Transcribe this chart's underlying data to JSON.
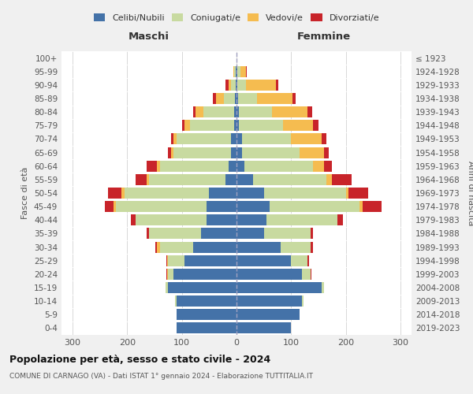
{
  "age_groups": [
    "0-4",
    "5-9",
    "10-14",
    "15-19",
    "20-24",
    "25-29",
    "30-34",
    "35-39",
    "40-44",
    "45-49",
    "50-54",
    "55-59",
    "60-64",
    "65-69",
    "70-74",
    "75-79",
    "80-84",
    "85-89",
    "90-94",
    "95-99",
    "100+"
  ],
  "birth_years": [
    "2019-2023",
    "2014-2018",
    "2009-2013",
    "2004-2008",
    "1999-2003",
    "1994-1998",
    "1989-1993",
    "1984-1988",
    "1979-1983",
    "1974-1978",
    "1969-1973",
    "1964-1968",
    "1959-1963",
    "1954-1958",
    "1949-1953",
    "1944-1948",
    "1939-1943",
    "1934-1938",
    "1929-1933",
    "1924-1928",
    "≤ 1923"
  ],
  "male": {
    "celibi": [
      110,
      110,
      110,
      125,
      115,
      95,
      80,
      65,
      55,
      55,
      50,
      20,
      15,
      10,
      10,
      5,
      5,
      3,
      2,
      2,
      0
    ],
    "coniugati": [
      0,
      0,
      2,
      5,
      10,
      30,
      60,
      95,
      130,
      165,
      155,
      140,
      125,
      105,
      100,
      80,
      55,
      20,
      8,
      2,
      0
    ],
    "vedovi": [
      0,
      0,
      0,
      0,
      2,
      2,
      5,
      0,
      0,
      5,
      5,
      5,
      5,
      5,
      5,
      10,
      15,
      15,
      5,
      2,
      0
    ],
    "divorziati": [
      0,
      0,
      0,
      0,
      2,
      2,
      3,
      5,
      8,
      15,
      25,
      20,
      20,
      5,
      5,
      5,
      5,
      5,
      5,
      0,
      0
    ]
  },
  "female": {
    "nubili": [
      100,
      115,
      120,
      155,
      120,
      100,
      80,
      50,
      55,
      60,
      50,
      30,
      15,
      10,
      10,
      5,
      5,
      3,
      2,
      2,
      0
    ],
    "coniugate": [
      0,
      0,
      2,
      5,
      15,
      30,
      55,
      85,
      130,
      165,
      150,
      135,
      125,
      105,
      90,
      80,
      60,
      35,
      15,
      5,
      0
    ],
    "vedove": [
      0,
      0,
      0,
      0,
      0,
      0,
      0,
      0,
      0,
      5,
      5,
      10,
      20,
      45,
      55,
      55,
      65,
      65,
      55,
      10,
      0
    ],
    "divorziate": [
      0,
      0,
      0,
      0,
      2,
      2,
      5,
      5,
      10,
      35,
      35,
      35,
      15,
      8,
      10,
      10,
      8,
      5,
      5,
      2,
      0
    ]
  },
  "colors": {
    "celibi_nubili": "#4472a8",
    "coniugati": "#c8daa0",
    "vedovi": "#f5bc50",
    "divorziati": "#c8242a"
  },
  "title": "Popolazione per età, sesso e stato civile - 2024",
  "subtitle": "COMUNE DI CARNAGO (VA) - Dati ISTAT 1° gennaio 2024 - Elaborazione TUTTITALIA.IT",
  "xlabel_left": "Maschi",
  "xlabel_right": "Femmine",
  "ylabel_left": "Fasce di età",
  "ylabel_right": "Anni di nascita",
  "xlim": 320,
  "bg_color": "#f0f0f0",
  "plot_bg": "#ffffff",
  "grid_color": "#d8d8d8"
}
